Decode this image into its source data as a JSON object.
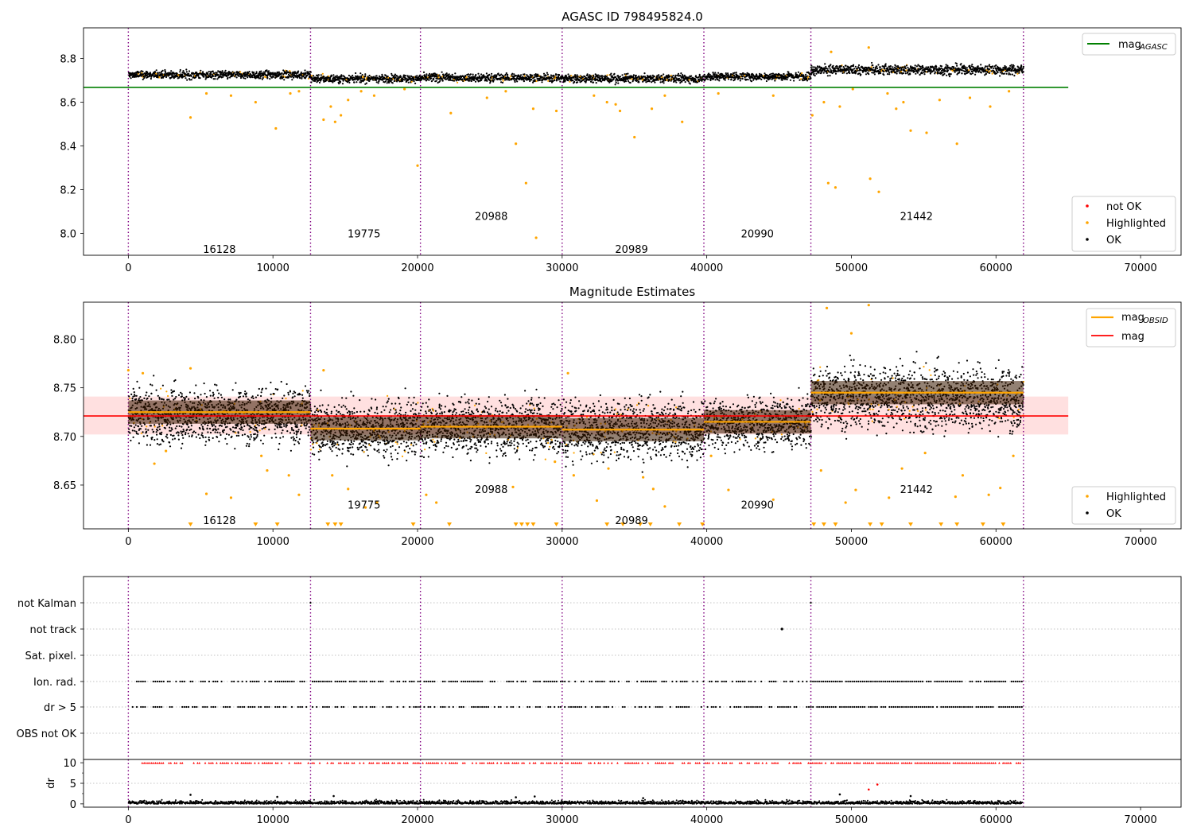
{
  "chart_data": [
    {
      "id": "top",
      "type": "scatter",
      "title": "AGASC ID 798495824.0",
      "xlim": [
        -3100,
        72800
      ],
      "ylim": [
        7.9,
        8.94
      ],
      "xticks": [
        0,
        10000,
        20000,
        30000,
        40000,
        50000,
        60000,
        70000
      ],
      "xtick_labels": [
        "0",
        "10000",
        "20000",
        "30000",
        "40000",
        "50000",
        "60000",
        "70000"
      ],
      "yticks": [
        8.0,
        8.2,
        8.4,
        8.6,
        8.8
      ],
      "ytick_labels": [
        "8.0",
        "8.2",
        "8.4",
        "8.6",
        "8.8"
      ],
      "obsid_boundaries": [
        0,
        12600,
        20200,
        30000,
        39800,
        47200,
        61900
      ],
      "obsid_labels": [
        {
          "text": "16128",
          "x": 6300,
          "y": 7.93
        },
        {
          "text": "19775",
          "x": 16300,
          "y": 8.0
        },
        {
          "text": "20988",
          "x": 25100,
          "y": 8.08
        },
        {
          "text": "20989",
          "x": 34800,
          "y": 7.93
        },
        {
          "text": "20990",
          "x": 43500,
          "y": 8.0
        },
        {
          "text": "21442",
          "x": 54500,
          "y": 8.08
        }
      ],
      "agasc_line": {
        "y": 8.668,
        "x_range": [
          -3100,
          65000
        ],
        "color": "#008000"
      },
      "segments": [
        {
          "x0": 0,
          "x1": 12600,
          "center": 8.725,
          "half_width": 0.02
        },
        {
          "x0": 12600,
          "x1": 20200,
          "center": 8.708,
          "half_width": 0.02
        },
        {
          "x0": 20200,
          "x1": 30000,
          "center": 8.712,
          "half_width": 0.02
        },
        {
          "x0": 30000,
          "x1": 39800,
          "center": 8.708,
          "half_width": 0.02
        },
        {
          "x0": 39800,
          "x1": 47200,
          "center": 8.718,
          "half_width": 0.02
        },
        {
          "x0": 47200,
          "x1": 61900,
          "center": 8.748,
          "half_width": 0.025
        }
      ],
      "highlighted_outliers": [
        [
          4300,
          8.53
        ],
        [
          5400,
          8.64
        ],
        [
          7100,
          8.63
        ],
        [
          8800,
          8.6
        ],
        [
          10200,
          8.48
        ],
        [
          11200,
          8.64
        ],
        [
          11800,
          8.65
        ],
        [
          13500,
          8.52
        ],
        [
          14000,
          8.58
        ],
        [
          14300,
          8.51
        ],
        [
          14700,
          8.54
        ],
        [
          15200,
          8.61
        ],
        [
          16100,
          8.65
        ],
        [
          17000,
          8.63
        ],
        [
          19100,
          8.66
        ],
        [
          20000,
          8.31
        ],
        [
          22300,
          8.55
        ],
        [
          24800,
          8.62
        ],
        [
          26100,
          8.65
        ],
        [
          26800,
          8.41
        ],
        [
          27500,
          8.23
        ],
        [
          28000,
          8.57
        ],
        [
          28200,
          7.98
        ],
        [
          29600,
          8.56
        ],
        [
          32200,
          8.63
        ],
        [
          33100,
          8.6
        ],
        [
          33700,
          8.59
        ],
        [
          34000,
          8.56
        ],
        [
          35000,
          8.44
        ],
        [
          36200,
          8.57
        ],
        [
          37100,
          8.63
        ],
        [
          38300,
          8.51
        ],
        [
          40800,
          8.64
        ],
        [
          44600,
          8.63
        ],
        [
          47300,
          8.54
        ],
        [
          48100,
          8.6
        ],
        [
          48400,
          8.23
        ],
        [
          48900,
          8.21
        ],
        [
          49200,
          8.58
        ],
        [
          50100,
          8.66
        ],
        [
          51300,
          8.25
        ],
        [
          51900,
          8.19
        ],
        [
          52500,
          8.64
        ],
        [
          53100,
          8.57
        ],
        [
          53600,
          8.6
        ],
        [
          54100,
          8.47
        ],
        [
          55200,
          8.46
        ],
        [
          56100,
          8.61
        ],
        [
          57300,
          8.41
        ],
        [
          58200,
          8.62
        ],
        [
          59600,
          8.58
        ],
        [
          60900,
          8.65
        ],
        [
          51200,
          8.85
        ],
        [
          48600,
          8.83
        ]
      ],
      "legend_upper": [
        {
          "label": "mag",
          "subscript": "AGASC",
          "color": "#008000"
        }
      ],
      "legend_lower": [
        {
          "label": "not OK",
          "color": "#ff0000"
        },
        {
          "label": "Highlighted",
          "color": "#ffa500"
        },
        {
          "label": "OK",
          "color": "#000000"
        }
      ]
    },
    {
      "id": "middle",
      "type": "scatter",
      "title": "Magnitude Estimates",
      "xlim": [
        -3100,
        72800
      ],
      "ylim": [
        8.605,
        8.838
      ],
      "xticks": [
        0,
        10000,
        20000,
        30000,
        40000,
        50000,
        60000,
        70000
      ],
      "xtick_labels": [
        "0",
        "10000",
        "20000",
        "30000",
        "40000",
        "50000",
        "60000",
        "70000"
      ],
      "yticks": [
        8.65,
        8.7,
        8.75,
        8.8
      ],
      "ytick_labels": [
        "8.65",
        "8.70",
        "8.75",
        "8.80"
      ],
      "obsid_boundaries": [
        0,
        12600,
        20200,
        30000,
        39800,
        47200,
        61900
      ],
      "obsid_labels": [
        {
          "text": "16128",
          "x": 6300,
          "y": 8.614
        },
        {
          "text": "19775",
          "x": 16300,
          "y": 8.63
        },
        {
          "text": "20988",
          "x": 25100,
          "y": 8.646
        },
        {
          "text": "20989",
          "x": 34800,
          "y": 8.614
        },
        {
          "text": "20990",
          "x": 43500,
          "y": 8.63
        },
        {
          "text": "21442",
          "x": 54500,
          "y": 8.646
        }
      ],
      "mag": {
        "value": 8.721,
        "band": [
          8.702,
          8.741
        ],
        "x_range": [
          -3100,
          65000
        ],
        "color": "#ff0000"
      },
      "mag_obsid": [
        {
          "x0": 0,
          "x1": 12600,
          "value": 8.725
        },
        {
          "x0": 12600,
          "x1": 20200,
          "value": 8.708
        },
        {
          "x0": 20200,
          "x1": 30000,
          "value": 8.71
        },
        {
          "x0": 30000,
          "x1": 39800,
          "value": 8.707
        },
        {
          "x0": 39800,
          "x1": 47200,
          "value": 8.715
        },
        {
          "x0": 47200,
          "x1": 61900,
          "value": 8.745
        }
      ],
      "segments": [
        {
          "x0": 0,
          "x1": 12600,
          "center": 8.722,
          "half_width": 0.03
        },
        {
          "x0": 12600,
          "x1": 20200,
          "center": 8.708,
          "half_width": 0.032
        },
        {
          "x0": 20200,
          "x1": 30000,
          "center": 8.71,
          "half_width": 0.03
        },
        {
          "x0": 30000,
          "x1": 39800,
          "center": 8.707,
          "half_width": 0.032
        },
        {
          "x0": 39800,
          "x1": 47200,
          "center": 8.714,
          "half_width": 0.028
        },
        {
          "x0": 47200,
          "x1": 61900,
          "center": 8.74,
          "half_width": 0.035
        }
      ],
      "highlighted_outliers": [
        [
          1800,
          8.672
        ],
        [
          2600,
          8.685
        ],
        [
          5400,
          8.641
        ],
        [
          7100,
          8.637
        ],
        [
          9200,
          8.68
        ],
        [
          9600,
          8.665
        ],
        [
          11100,
          8.66
        ],
        [
          11800,
          8.64
        ],
        [
          14100,
          8.66
        ],
        [
          15200,
          8.646
        ],
        [
          16400,
          8.627
        ],
        [
          17200,
          8.632
        ],
        [
          20600,
          8.64
        ],
        [
          21300,
          8.632
        ],
        [
          26600,
          8.648
        ],
        [
          29500,
          8.674
        ],
        [
          30800,
          8.66
        ],
        [
          32400,
          8.634
        ],
        [
          33200,
          8.667
        ],
        [
          35600,
          8.658
        ],
        [
          36300,
          8.646
        ],
        [
          37100,
          8.628
        ],
        [
          40300,
          8.68
        ],
        [
          41500,
          8.645
        ],
        [
          44600,
          8.635
        ],
        [
          47900,
          8.665
        ],
        [
          49600,
          8.632
        ],
        [
          50300,
          8.645
        ],
        [
          52600,
          8.637
        ],
        [
          53500,
          8.667
        ],
        [
          55100,
          8.683
        ],
        [
          57200,
          8.638
        ],
        [
          57700,
          8.66
        ],
        [
          59500,
          8.64
        ],
        [
          60300,
          8.647
        ],
        [
          61200,
          8.68
        ],
        [
          48300,
          8.832
        ],
        [
          51200,
          8.835
        ],
        [
          50000,
          8.806
        ],
        [
          0,
          8.768
        ],
        [
          1000,
          8.765
        ],
        [
          4300,
          8.77
        ],
        [
          13500,
          8.768
        ],
        [
          30400,
          8.765
        ]
      ],
      "below_range_x": [
        4300,
        8800,
        10300,
        13800,
        14300,
        14700,
        19700,
        22200,
        26800,
        27200,
        27600,
        28000,
        29600,
        33100,
        34200,
        35400,
        36100,
        38100,
        39700,
        47400,
        48100,
        48900,
        51300,
        52100,
        54100,
        56200,
        57300,
        59100,
        60500
      ],
      "legend_upper": [
        {
          "label": "mag",
          "subscript": "OBSID",
          "color": "#ffa500"
        },
        {
          "label": "mag",
          "subscript": "",
          "color": "#ff0000"
        }
      ],
      "legend_lower": [
        {
          "label": "Highlighted",
          "color": "#ffa500"
        },
        {
          "label": "OK",
          "color": "#000000"
        }
      ]
    },
    {
      "id": "flags",
      "type": "scatter",
      "xlim": [
        -3100,
        72800
      ],
      "categories": [
        "not Kalman",
        "not track",
        "Sat. pixel.",
        "Ion. rad.",
        "dr > 5",
        "OBS not OK"
      ],
      "obsid_boundaries": [
        0,
        12600,
        20200,
        30000,
        39800,
        47200,
        61900
      ],
      "not_track_points": [
        45200
      ],
      "not_kalman_points": [
        12600,
        47200
      ]
    },
    {
      "id": "dr",
      "type": "scatter",
      "ylabel": "dr",
      "xlim": [
        -3100,
        72800
      ],
      "ylim": [
        -0.8,
        10.8
      ],
      "xticks": [
        0,
        10000,
        20000,
        30000,
        40000,
        50000,
        60000,
        70000
      ],
      "xtick_labels": [
        "0",
        "10000",
        "20000",
        "30000",
        "40000",
        "50000",
        "60000",
        "70000"
      ],
      "yticks": [
        0,
        5,
        10
      ],
      "ytick_labels": [
        "0",
        "5",
        "10"
      ],
      "obsid_boundaries": [
        0,
        12600,
        20200,
        30000,
        39800,
        47200,
        61900
      ],
      "outliers": [
        [
          4300,
          2.2
        ],
        [
          10300,
          1.7
        ],
        [
          14200,
          1.9
        ],
        [
          26800,
          1.6
        ],
        [
          28100,
          1.8
        ],
        [
          35600,
          1.4
        ],
        [
          49200,
          2.3
        ],
        [
          54100,
          1.9
        ],
        [
          51200,
          3.5
        ],
        [
          51800,
          4.7
        ]
      ]
    }
  ]
}
